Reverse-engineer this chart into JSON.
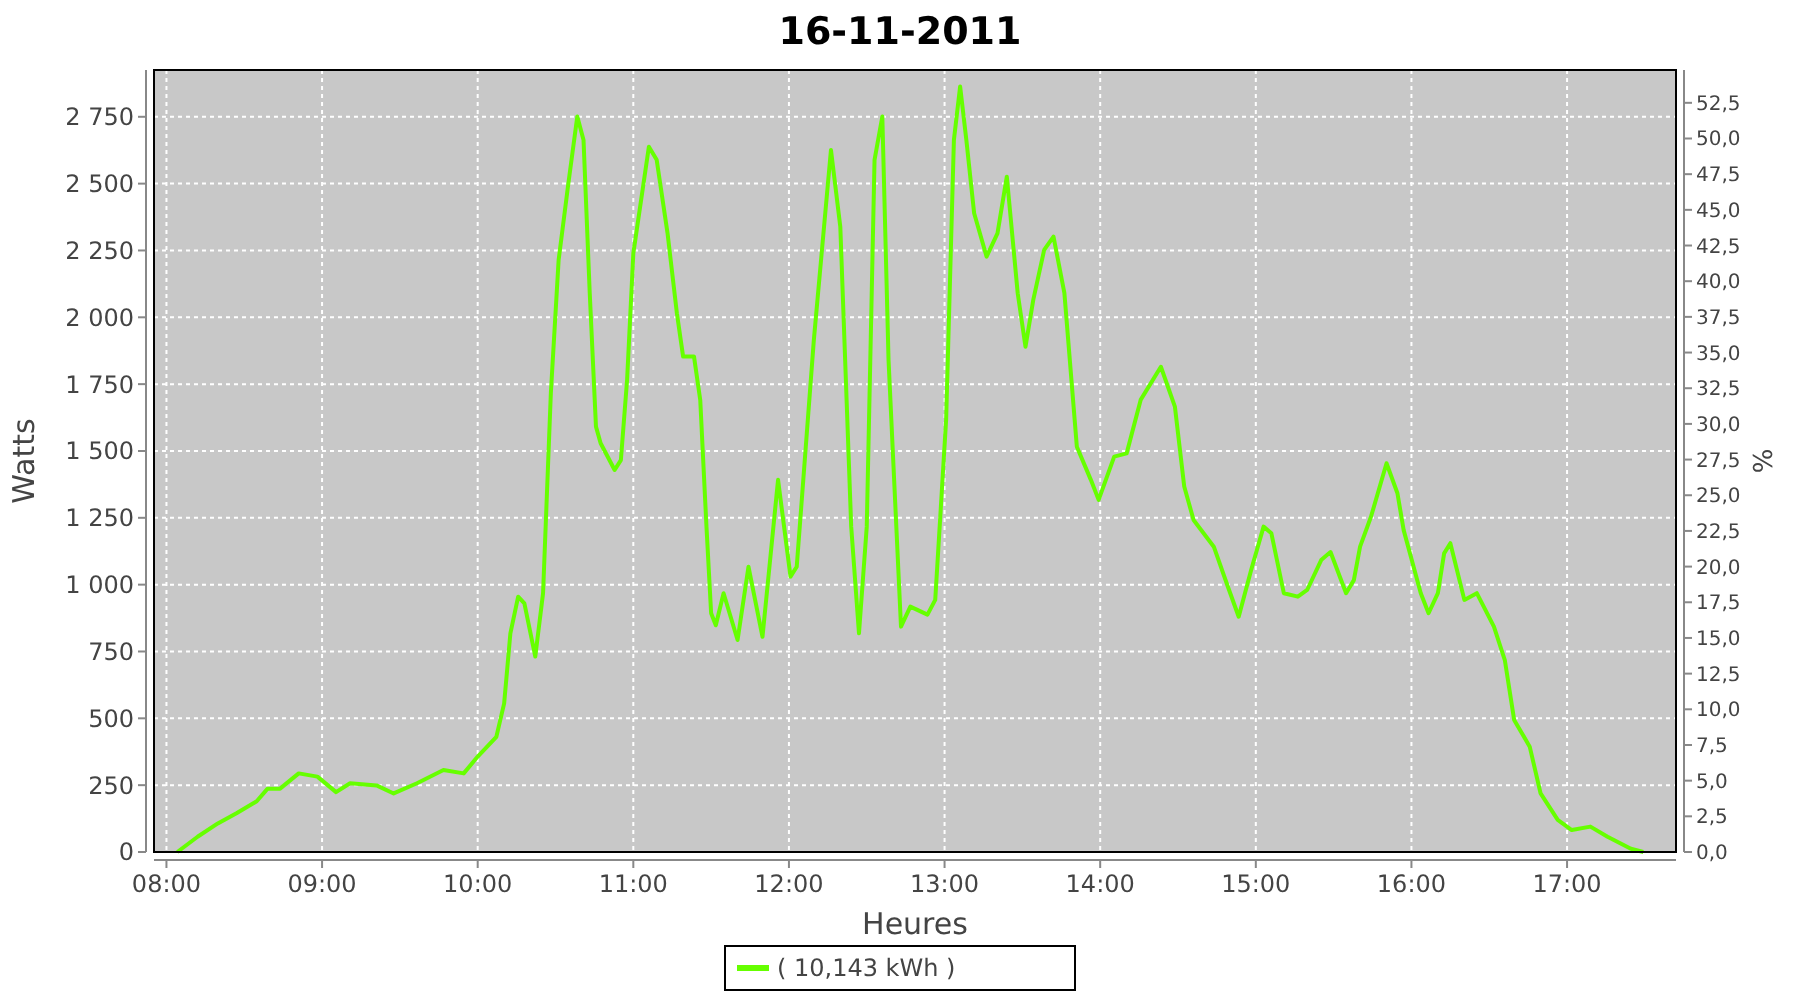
{
  "chart_data": {
    "type": "line",
    "title": "16-11-2011",
    "xlabel": "Heures",
    "ylabel": "Watts",
    "y2label": "%",
    "xlim": [
      7.92,
      17.7
    ],
    "ylim": [
      0,
      2925
    ],
    "y2lim": [
      0,
      54.8
    ],
    "xticks": [
      {
        "value": 8,
        "label": "08:00"
      },
      {
        "value": 9,
        "label": "09:00"
      },
      {
        "value": 10,
        "label": "10:00"
      },
      {
        "value": 11,
        "label": "11:00"
      },
      {
        "value": 12,
        "label": "12:00"
      },
      {
        "value": 13,
        "label": "13:00"
      },
      {
        "value": 14,
        "label": "14:00"
      },
      {
        "value": 15,
        "label": "15:00"
      },
      {
        "value": 16,
        "label": "16:00"
      },
      {
        "value": 17,
        "label": "17:00"
      }
    ],
    "yticks": [
      0,
      250,
      500,
      750,
      {
        "value": 1000,
        "label": "1 000"
      },
      {
        "value": 1250,
        "label": "1 250"
      },
      {
        "value": 1500,
        "label": "1 500"
      },
      {
        "value": 1750,
        "label": "1 750"
      },
      {
        "value": 2000,
        "label": "2 000"
      },
      {
        "value": 2250,
        "label": "2 250"
      },
      {
        "value": 2500,
        "label": "2 500"
      },
      {
        "value": 2750,
        "label": "2 750"
      }
    ],
    "y2ticks": [
      {
        "value": 0,
        "label": "0,0"
      },
      {
        "value": 2.5,
        "label": "2,5"
      },
      {
        "value": 5,
        "label": "5,0"
      },
      {
        "value": 7.5,
        "label": "7,5"
      },
      {
        "value": 10,
        "label": "10,0"
      },
      {
        "value": 12.5,
        "label": "12,5"
      },
      {
        "value": 15,
        "label": "15,0"
      },
      {
        "value": 17.5,
        "label": "17,5"
      },
      {
        "value": 20,
        "label": "20,0"
      },
      {
        "value": 22.5,
        "label": "22,5"
      },
      {
        "value": 25,
        "label": "25,0"
      },
      {
        "value": 27.5,
        "label": "27,5"
      },
      {
        "value": 30,
        "label": "30,0"
      },
      {
        "value": 32.5,
        "label": "32,5"
      },
      {
        "value": 35,
        "label": "35,0"
      },
      {
        "value": 37.5,
        "label": "37,5"
      },
      {
        "value": 40,
        "label": "40,0"
      },
      {
        "value": 42.5,
        "label": "42,5"
      },
      {
        "value": 45,
        "label": "45,0"
      },
      {
        "value": 47.5,
        "label": "47,5"
      },
      {
        "value": 50,
        "label": "50,0"
      },
      {
        "value": 52.5,
        "label": "52,5"
      }
    ],
    "grid": true,
    "legend": "bottom",
    "line_style": "solid",
    "marker": "none",
    "series": [
      {
        "name": "( 10,143 kWh )",
        "color": "#66ff00",
        "x": [
          8.07,
          8.2,
          8.33,
          8.45,
          8.58,
          8.65,
          8.73,
          8.85,
          8.97,
          9.09,
          9.18,
          9.35,
          9.46,
          9.61,
          9.78,
          9.91,
          10.0,
          10.12,
          10.17,
          10.21,
          10.26,
          10.3,
          10.37,
          10.42,
          10.47,
          10.52,
          10.58,
          10.64,
          10.68,
          10.72,
          10.76,
          10.79,
          10.88,
          10.92,
          10.96,
          11.0,
          11.1,
          11.15,
          11.22,
          11.28,
          11.32,
          11.39,
          11.43,
          11.47,
          11.5,
          11.53,
          11.58,
          11.67,
          11.74,
          11.83,
          11.93,
          12.01,
          12.05,
          12.16,
          12.27,
          12.33,
          12.4,
          12.45,
          12.5,
          12.55,
          12.6,
          12.64,
          12.72,
          12.78,
          12.89,
          12.94,
          13.01,
          13.06,
          13.1,
          13.14,
          13.19,
          13.27,
          13.34,
          13.4,
          13.47,
          13.52,
          13.57,
          13.64,
          13.7,
          13.77,
          13.85,
          13.94,
          13.99,
          14.09,
          14.17,
          14.26,
          14.39,
          14.48,
          14.54,
          14.6,
          14.73,
          14.82,
          14.89,
          14.97,
          15.05,
          15.1,
          15.18,
          15.27,
          15.33,
          15.42,
          15.48,
          15.58,
          15.63,
          15.67,
          15.74,
          15.84,
          15.91,
          15.95,
          16.06,
          16.11,
          16.17,
          16.21,
          16.25,
          16.34,
          16.42,
          16.53,
          16.6,
          16.66,
          16.76,
          16.83,
          16.94,
          17.03,
          17.15,
          17.26,
          17.41,
          17.49
        ],
        "values": [
          0,
          57,
          107,
          145,
          190,
          237,
          237,
          294,
          282,
          224,
          257,
          249,
          219,
          257,
          307,
          294,
          357,
          431,
          556,
          818,
          955,
          930,
          731,
          968,
          1716,
          2214,
          2489,
          2751,
          2663,
          2090,
          1591,
          1529,
          1429,
          1466,
          1766,
          2239,
          2638,
          2589,
          2314,
          2015,
          1853,
          1853,
          1691,
          1217,
          893,
          848,
          968,
          793,
          1067,
          805,
          1392,
          1030,
          1067,
          1915,
          2626,
          2339,
          1217,
          818,
          1217,
          2589,
          2751,
          1840,
          843,
          918,
          888,
          943,
          1616,
          2663,
          2863,
          2663,
          2389,
          2227,
          2314,
          2526,
          2090,
          1890,
          2065,
          2252,
          2302,
          2090,
          1516,
          1392,
          1317,
          1479,
          1491,
          1691,
          1815,
          1666,
          1367,
          1242,
          1142,
          993,
          880,
          1055,
          1217,
          1192,
          968,
          955,
          980,
          1092,
          1122,
          968,
          1017,
          1142,
          1254,
          1454,
          1342,
          1204,
          968,
          893,
          968,
          1117,
          1155,
          943,
          968,
          843,
          718,
          494,
          394,
          219,
          120,
          82,
          95,
          57,
          12,
          0
        ]
      }
    ]
  }
}
